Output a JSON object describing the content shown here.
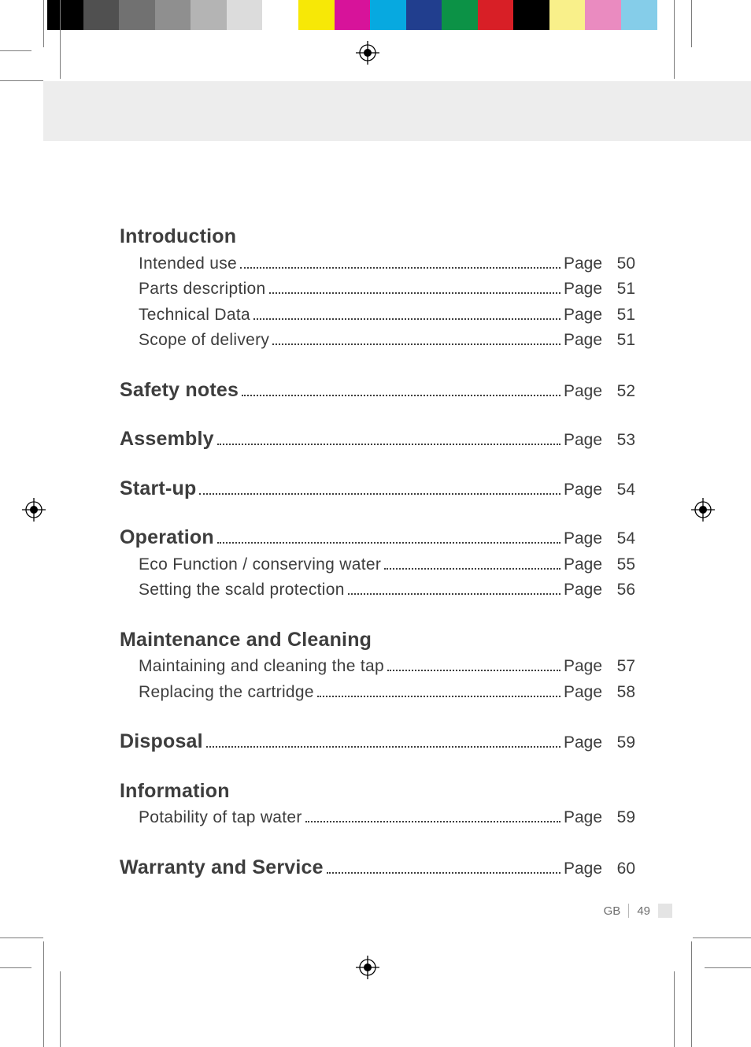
{
  "color_bar": {
    "colors": [
      "#000000",
      "#505050",
      "#717171",
      "#8f8f8f",
      "#b4b4b4",
      "#dcdcdc",
      "#ffffff",
      "#f7e806",
      "#d7139a",
      "#07a9e0",
      "#213e8e",
      "#0c9246",
      "#d81f26",
      "#000000",
      "#f9f08a",
      "#ea8bc0",
      "#85cde9",
      "#ffffff"
    ]
  },
  "header_band_color": "#ededed",
  "page_word": "Page",
  "toc": [
    {
      "heading": "Introduction",
      "page": null,
      "subs": [
        {
          "label": "Intended use",
          "page": "50"
        },
        {
          "label": "Parts description",
          "page": "51"
        },
        {
          "label": "Technical Data",
          "page": "51"
        },
        {
          "label": "Scope of delivery",
          "page": "51"
        }
      ]
    },
    {
      "heading": "Safety notes",
      "page": "52",
      "subs": []
    },
    {
      "heading": "Assembly",
      "page": "53",
      "subs": []
    },
    {
      "heading": "Start-up",
      "page": "54",
      "subs": []
    },
    {
      "heading": "Operation",
      "page": "54",
      "subs": [
        {
          "label": "Eco Function / conserving water",
          "page": "55"
        },
        {
          "label": "Setting the scald protection",
          "page": "56"
        }
      ]
    },
    {
      "heading": "Maintenance and Cleaning",
      "page": null,
      "subs": [
        {
          "label": "Maintaining and cleaning the tap",
          "page": "57"
        },
        {
          "label": "Replacing the cartridge",
          "page": "58"
        }
      ]
    },
    {
      "heading": "Disposal",
      "page": "59",
      "subs": []
    },
    {
      "heading": "Information",
      "page": null,
      "subs": [
        {
          "label": "Potability of tap water",
          "page": "59"
        }
      ]
    },
    {
      "heading": "Warranty and Service",
      "page": "60",
      "subs": []
    }
  ],
  "footer": {
    "lang": "GB",
    "page_num": "49"
  },
  "style": {
    "text_color": "#3d3d3d",
    "heading_fontsize_pt": 19,
    "sub_fontsize_pt": 16,
    "footer_color": "#6e6e6e",
    "crop_mark_color": "#7c7c7c"
  }
}
